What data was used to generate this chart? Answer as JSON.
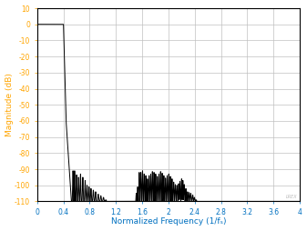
{
  "title": "",
  "xlabel": "Normalized Frequency (1/fₛ)",
  "ylabel": "Magnitude (dB)",
  "xlim": [
    0,
    4
  ],
  "ylim": [
    -110,
    10
  ],
  "xticks": [
    0,
    0.4,
    0.8,
    1.2,
    1.6,
    2.0,
    2.4,
    2.8,
    3.2,
    3.6,
    4.0
  ],
  "yticks": [
    -110,
    -100,
    -90,
    -80,
    -70,
    -60,
    -50,
    -40,
    -30,
    -20,
    -10,
    0,
    10
  ],
  "xlabel_color": "#0070C0",
  "ylabel_color": "#FFA500",
  "tick_color_x": "#0070C0",
  "tick_color_y": "#FFA500",
  "line_color": "#000000",
  "grid_color": "#C0C0C0",
  "background_color": "#FFFFFF",
  "watermark": "LREX"
}
